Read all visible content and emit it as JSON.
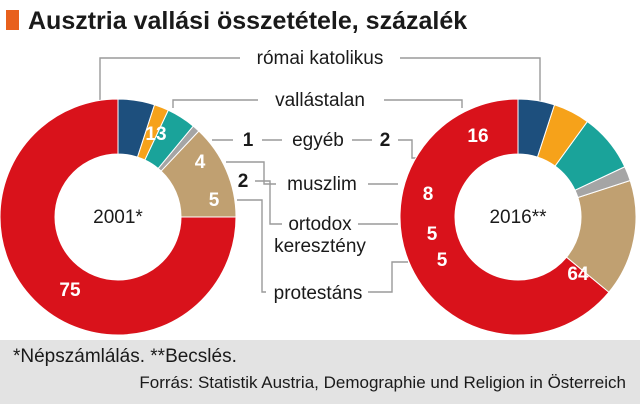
{
  "chart_data": {
    "type": "pie",
    "title": "Ausztria vallási összetétele, százalék",
    "categories": [
      "római katolikus",
      "vallástalan",
      "egyéb",
      "muszlim",
      "ortodox keresztény",
      "protestáns"
    ],
    "label_lines": {
      "ortodox": [
        "ortodox",
        "keresztény"
      ]
    },
    "colors": {
      "római katolikus": "#d9121b",
      "vallástalan": "#c0a071",
      "egyéb": "#a5a5a5",
      "muszlim": "#1aa39a",
      "ortodox keresztény": "#f6a21a",
      "protestáns": "#1d4f7d",
      "title_marker": "#e8601c"
    },
    "series": [
      {
        "name": "2001*",
        "values": [
          75,
          13,
          1,
          4,
          2,
          5
        ]
      },
      {
        "name": "2016**",
        "values": [
          64,
          16,
          2,
          8,
          5,
          5
        ]
      }
    ],
    "legend": "center"
  },
  "footer": {
    "note": "*Népszámlálás.  **Becslés.",
    "source": "Forrás: Statistik Austria, Demographie und Religion in Österreich"
  }
}
